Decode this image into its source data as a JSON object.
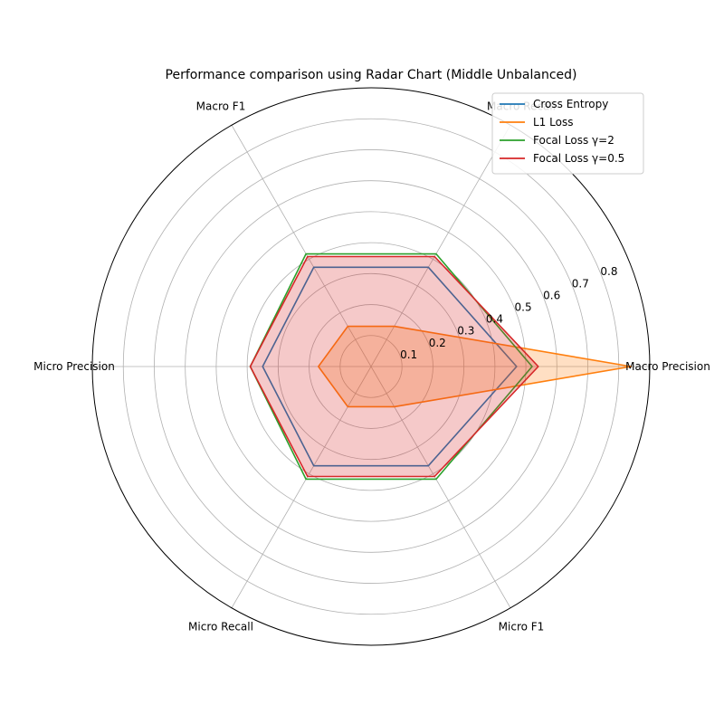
{
  "chart_data": {
    "type": "radar",
    "title": "Performance comparison using Radar Chart (Middle Unbalanced)",
    "categories": [
      "Macro Precision",
      "Macro Recall",
      "Macro F1",
      "Micro Precision",
      "Micro Recall",
      "Micro F1"
    ],
    "r_ticks": [
      "0.1",
      "0.2",
      "0.3",
      "0.4",
      "0.5",
      "0.6",
      "0.7",
      "0.8"
    ],
    "rlim": [
      0,
      0.9
    ],
    "grid": true,
    "legend_position": "top-right",
    "series": [
      {
        "name": "Cross Entropy",
        "color": "#1f77b4",
        "values": [
          0.47,
          0.37,
          0.37,
          0.35,
          0.37,
          0.37
        ],
        "filled": false
      },
      {
        "name": "L1 Loss",
        "color": "#ff7f0e",
        "values": [
          0.84,
          0.15,
          0.15,
          0.17,
          0.15,
          0.15
        ],
        "filled": true
      },
      {
        "name": "Focal Loss γ=2",
        "color": "#2ca02c",
        "values": [
          0.52,
          0.42,
          0.42,
          0.39,
          0.42,
          0.42
        ],
        "filled": false
      },
      {
        "name": "Focal Loss γ=0.5",
        "color": "#d62728",
        "values": [
          0.54,
          0.41,
          0.41,
          0.39,
          0.41,
          0.41
        ],
        "filled": true
      }
    ]
  }
}
